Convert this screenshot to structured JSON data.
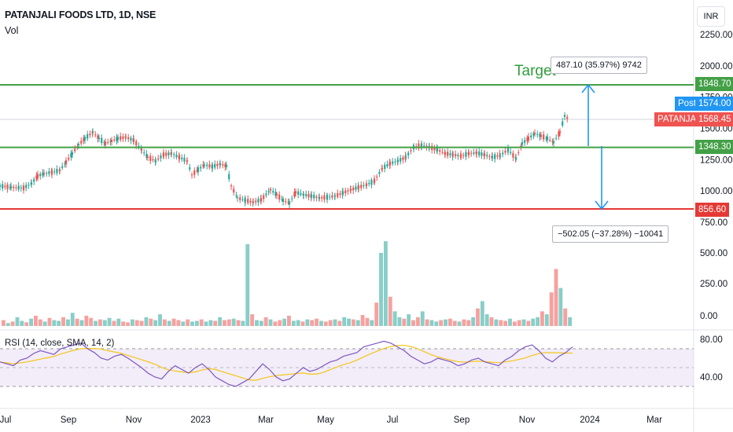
{
  "header": {
    "title": "PATANJALI FOODS LTD, 1D, NSE",
    "vol_label": "Vol"
  },
  "currency": "INR",
  "annotations": {
    "target_label": "Target",
    "up_measure": "487.10 (35.97%) 9742",
    "down_measure": "−502.05 (−37.28%) −10041"
  },
  "price_tags": [
    {
      "label": "",
      "value": "1848.70",
      "color": "#43a047"
    },
    {
      "label": "Post",
      "value": "1574.00",
      "color": "#2196f3"
    },
    {
      "label": "PATANJALI",
      "value": "1568.45",
      "color": "#ef5350"
    },
    {
      "label": "",
      "value": "1348.30",
      "color": "#43a047"
    },
    {
      "label": "",
      "value": "856.60",
      "color": "#e53935"
    }
  ],
  "chart_data": {
    "type": "candlestick",
    "x_ticks": [
      "Jul",
      "Sep",
      "Nov",
      "2023",
      "Mar",
      "May",
      "Jul",
      "Sep",
      "Nov",
      "2024",
      "Mar"
    ],
    "price_axis": {
      "ticks": [
        "2250.00",
        "2000.00",
        "1750.00",
        "1500.00",
        "1250.00",
        "1000.00",
        "750.00"
      ],
      "range": [
        750,
        2250
      ]
    },
    "volume_axis": {
      "ticks": [
        "500.00",
        "250.00",
        "0.00"
      ]
    },
    "rsi_axis": {
      "ticks": [
        "80.00",
        "40.00"
      ]
    },
    "rsi_label": "RSI (14, close, SMA, 14, 2)",
    "horizontal_lines": [
      {
        "value": 1848.7,
        "color": "#43a047"
      },
      {
        "value": 1348.3,
        "color": "#43a047"
      },
      {
        "value": 856.6,
        "color": "#e53935"
      }
    ],
    "price_series": [
      [
        0,
        1040
      ],
      [
        14,
        1030
      ],
      [
        30,
        1025
      ],
      [
        40,
        1060
      ],
      [
        48,
        1120
      ],
      [
        56,
        1140
      ],
      [
        66,
        1150
      ],
      [
        76,
        1165
      ],
      [
        84,
        1230
      ],
      [
        92,
        1300
      ],
      [
        100,
        1370
      ],
      [
        108,
        1420
      ],
      [
        118,
        1470
      ],
      [
        126,
        1420
      ],
      [
        134,
        1380
      ],
      [
        142,
        1400
      ],
      [
        150,
        1420
      ],
      [
        160,
        1430
      ],
      [
        170,
        1405
      ],
      [
        180,
        1330
      ],
      [
        188,
        1270
      ],
      [
        198,
        1240
      ],
      [
        208,
        1290
      ],
      [
        218,
        1300
      ],
      [
        228,
        1270
      ],
      [
        238,
        1240
      ],
      [
        244,
        1130
      ],
      [
        252,
        1170
      ],
      [
        260,
        1210
      ],
      [
        270,
        1195
      ],
      [
        280,
        1215
      ],
      [
        288,
        1200
      ],
      [
        294,
        1040
      ],
      [
        302,
        945
      ],
      [
        312,
        925
      ],
      [
        322,
        910
      ],
      [
        332,
        930
      ],
      [
        344,
        1010
      ],
      [
        352,
        970
      ],
      [
        360,
        925
      ],
      [
        368,
        905
      ],
      [
        376,
        990
      ],
      [
        386,
        970
      ],
      [
        396,
        960
      ],
      [
        406,
        945
      ],
      [
        416,
        950
      ],
      [
        426,
        960
      ],
      [
        436,
        985
      ],
      [
        446,
        1010
      ],
      [
        456,
        1030
      ],
      [
        466,
        1050
      ],
      [
        476,
        1080
      ],
      [
        486,
        1180
      ],
      [
        496,
        1220
      ],
      [
        506,
        1240
      ],
      [
        516,
        1270
      ],
      [
        526,
        1350
      ],
      [
        536,
        1365
      ],
      [
        546,
        1350
      ],
      [
        556,
        1330
      ],
      [
        566,
        1300
      ],
      [
        576,
        1290
      ],
      [
        586,
        1280
      ],
      [
        596,
        1300
      ],
      [
        606,
        1305
      ],
      [
        616,
        1290
      ],
      [
        626,
        1270
      ],
      [
        636,
        1285
      ],
      [
        646,
        1330
      ],
      [
        656,
        1260
      ],
      [
        664,
        1380
      ],
      [
        672,
        1420
      ],
      [
        680,
        1460
      ],
      [
        688,
        1440
      ],
      [
        696,
        1420
      ],
      [
        704,
        1390
      ],
      [
        712,
        1470
      ],
      [
        718,
        1600
      ],
      [
        724,
        1570
      ]
    ],
    "volume_series": [
      40,
      20,
      30,
      60,
      35,
      25,
      50,
      70,
      45,
      30,
      55,
      40,
      35,
      60,
      45,
      90,
      50,
      40,
      70,
      55,
      35,
      45,
      40,
      55,
      35,
      50,
      30,
      25,
      45,
      40,
      35,
      60,
      50,
      40,
      80,
      45,
      35,
      50,
      40,
      30,
      45,
      30,
      35,
      45,
      30,
      40,
      35,
      60,
      40,
      45,
      50,
      40,
      35,
      560,
      80,
      40,
      35,
      60,
      45,
      30,
      40,
      50,
      70,
      35,
      40,
      30,
      45,
      40,
      50,
      35,
      30,
      40,
      45,
      35,
      60,
      50,
      45,
      40,
      75,
      55,
      40,
      160,
      500,
      580,
      200,
      100,
      60,
      50,
      80,
      40,
      60,
      100,
      45,
      40,
      30,
      40,
      45,
      50,
      35,
      30,
      45,
      40,
      60,
      120,
      170,
      80,
      60,
      45,
      40,
      35,
      50,
      30,
      40,
      45,
      35,
      50,
      60,
      100,
      80,
      230,
      390,
      260,
      120,
      60
    ],
    "rsi_series": [
      56,
      54,
      52,
      58,
      60,
      65,
      68,
      66,
      64,
      70,
      72,
      74,
      76,
      70,
      66,
      60,
      58,
      62,
      64,
      60,
      55,
      50,
      44,
      40,
      38,
      46,
      52,
      48,
      44,
      50,
      54,
      48,
      40,
      36,
      32,
      30,
      34,
      38,
      46,
      54,
      48,
      40,
      36,
      38,
      44,
      50,
      46,
      48,
      52,
      56,
      58,
      62,
      64,
      66,
      72,
      74,
      76,
      78,
      76,
      72,
      68,
      62,
      58,
      54,
      56,
      60,
      58,
      56,
      52,
      54,
      58,
      60,
      56,
      54,
      52,
      58,
      62,
      68,
      72,
      74,
      68,
      60,
      56,
      62,
      66,
      72
    ]
  }
}
